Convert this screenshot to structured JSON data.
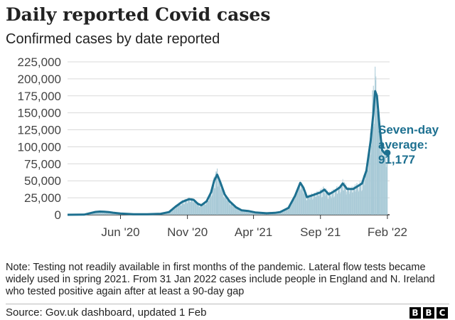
{
  "header": {
    "title": "Daily reported Covid cases",
    "subtitle": "Confirmed cases by date reported"
  },
  "chart_data": {
    "type": "area",
    "title": "Daily reported Covid cases",
    "subtitle": "Confirmed cases by date reported",
    "xlabel": "",
    "ylabel": "",
    "ylim": [
      0,
      225000
    ],
    "y_ticks": [
      0,
      25000,
      50000,
      75000,
      100000,
      125000,
      150000,
      175000,
      200000,
      225000
    ],
    "y_tick_labels": [
      "0",
      "25,000",
      "50,000",
      "75,000",
      "100,000",
      "125,000",
      "150,000",
      "175,000",
      "200,000",
      "225,000"
    ],
    "x_tick_labels": [
      {
        "label": "Jun '20",
        "date": "2020-06-01"
      },
      {
        "label": "Nov '20",
        "date": "2020-11-01"
      },
      {
        "label": "Apr '21",
        "date": "2021-04-01"
      },
      {
        "label": "Sep '21",
        "date": "2021-09-01"
      },
      {
        "label": "Feb '22",
        "date": "2022-02-01"
      }
    ],
    "grid": true,
    "series": [
      {
        "name": "Seven-day average",
        "color": "#1d7090",
        "points": [
          [
            "2020-02-01",
            0
          ],
          [
            "2020-03-10",
            200
          ],
          [
            "2020-03-25",
            2500
          ],
          [
            "2020-04-05",
            4200
          ],
          [
            "2020-04-15",
            4700
          ],
          [
            "2020-04-25",
            4500
          ],
          [
            "2020-05-05",
            4000
          ],
          [
            "2020-05-15",
            3000
          ],
          [
            "2020-06-01",
            1800
          ],
          [
            "2020-07-01",
            700
          ],
          [
            "2020-08-01",
            800
          ],
          [
            "2020-09-01",
            1500
          ],
          [
            "2020-09-20",
            4000
          ],
          [
            "2020-10-05",
            12000
          ],
          [
            "2020-10-20",
            19000
          ],
          [
            "2020-11-05",
            23000
          ],
          [
            "2020-11-15",
            22000
          ],
          [
            "2020-11-25",
            16000
          ],
          [
            "2020-12-03",
            14000
          ],
          [
            "2020-12-15",
            20000
          ],
          [
            "2020-12-25",
            33000
          ],
          [
            "2021-01-01",
            50000
          ],
          [
            "2021-01-08",
            59000
          ],
          [
            "2021-01-15",
            48000
          ],
          [
            "2021-01-25",
            30000
          ],
          [
            "2021-02-05",
            20000
          ],
          [
            "2021-02-20",
            11000
          ],
          [
            "2021-03-05",
            6500
          ],
          [
            "2021-03-20",
            5500
          ],
          [
            "2021-04-05",
            3500
          ],
          [
            "2021-05-01",
            2200
          ],
          [
            "2021-05-20",
            2800
          ],
          [
            "2021-06-01",
            4000
          ],
          [
            "2021-06-20",
            10000
          ],
          [
            "2021-07-05",
            28000
          ],
          [
            "2021-07-17",
            47000
          ],
          [
            "2021-07-24",
            40000
          ],
          [
            "2021-08-01",
            26000
          ],
          [
            "2021-08-15",
            29000
          ],
          [
            "2021-09-01",
            33000
          ],
          [
            "2021-09-10",
            37000
          ],
          [
            "2021-09-20",
            30000
          ],
          [
            "2021-10-01",
            34000
          ],
          [
            "2021-10-15",
            40000
          ],
          [
            "2021-10-22",
            46000
          ],
          [
            "2021-11-01",
            38000
          ],
          [
            "2021-11-15",
            38000
          ],
          [
            "2021-11-25",
            42000
          ],
          [
            "2021-12-05",
            46000
          ],
          [
            "2021-12-15",
            65000
          ],
          [
            "2021-12-25",
            110000
          ],
          [
            "2021-12-31",
            150000
          ],
          [
            "2022-01-04",
            182000
          ],
          [
            "2022-01-08",
            175000
          ],
          [
            "2022-01-14",
            130000
          ],
          [
            "2022-01-20",
            95000
          ],
          [
            "2022-01-26",
            90000
          ],
          [
            "2022-02-01",
            91177
          ]
        ]
      }
    ],
    "daily_cases_color": "#a7c9d6",
    "annotation": {
      "line1": "Seven-day",
      "line2": "average:",
      "value": "91,177",
      "date": "2022-02-01",
      "y": 91177
    },
    "daily_spikes": [
      [
        "2021-01-08",
        68000
      ],
      [
        "2022-01-04",
        218000
      ],
      [
        "2021-12-31",
        190000
      ],
      [
        "2021-12-29",
        183000
      ],
      [
        "2022-01-11",
        150000
      ],
      [
        "2022-01-18",
        120000
      ]
    ]
  },
  "note": {
    "text": "Note: Testing not readily available in first months of the pandemic. Lateral flow tests became widely used in spring 2021. From 31 Jan 2022 cases include people in England and N. Ireland who tested positive again after at least a 90-day gap"
  },
  "footer": {
    "source": "Source: Gov.uk dashboard, updated 1 Feb",
    "logo_letters": [
      "B",
      "B",
      "C"
    ]
  }
}
